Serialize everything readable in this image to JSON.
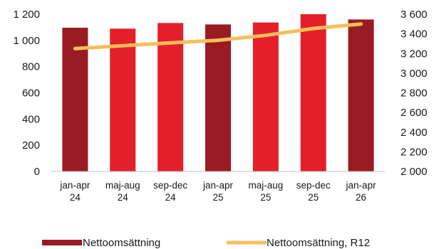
{
  "chart_data": {
    "type": "bar",
    "categories": [
      [
        "jan-apr",
        "24"
      ],
      [
        "maj-aug",
        "24"
      ],
      [
        "sep-dec",
        "24"
      ],
      [
        "jan-apr",
        "25"
      ],
      [
        "maj-aug",
        "25"
      ],
      [
        "sep-dec",
        "25"
      ],
      [
        "jan-apr",
        "26"
      ]
    ],
    "series": [
      {
        "name": "Nettoomsättning",
        "type": "bar",
        "axis": "left",
        "values": [
          1097,
          1090,
          1133,
          1122,
          1137,
          1200,
          1160
        ],
        "bar_colors": [
          "#9b1b22",
          "#e3202a",
          "#e3202a",
          "#9b1b22",
          "#e3202a",
          "#e3202a",
          "#9b1b22"
        ],
        "legend_color": "#9b1b22"
      },
      {
        "name": "Nettoomsättning, R12",
        "type": "line",
        "axis": "right",
        "values": [
          3250,
          3280,
          3308,
          3335,
          3385,
          3455,
          3500
        ],
        "color": "#f7be5b"
      }
    ],
    "y_left": {
      "range": [
        0,
        1200
      ],
      "ticks": [
        0,
        200,
        400,
        600,
        800,
        1000,
        1200
      ],
      "tick_labels": [
        "0",
        "200",
        "400",
        "600",
        "800",
        "1 000",
        "1 200"
      ]
    },
    "y_right": {
      "range": [
        2000,
        3600
      ],
      "ticks": [
        2000,
        2200,
        2400,
        2600,
        2800,
        3000,
        3200,
        3400,
        3600
      ],
      "tick_labels": [
        "2 000",
        "2 200",
        "2 400",
        "2 600",
        "2 800",
        "3 000",
        "3 200",
        "3 400",
        "3 600"
      ]
    },
    "title": "",
    "xlabel": "",
    "ylabel": "",
    "grid": false,
    "legend": "bottom"
  }
}
